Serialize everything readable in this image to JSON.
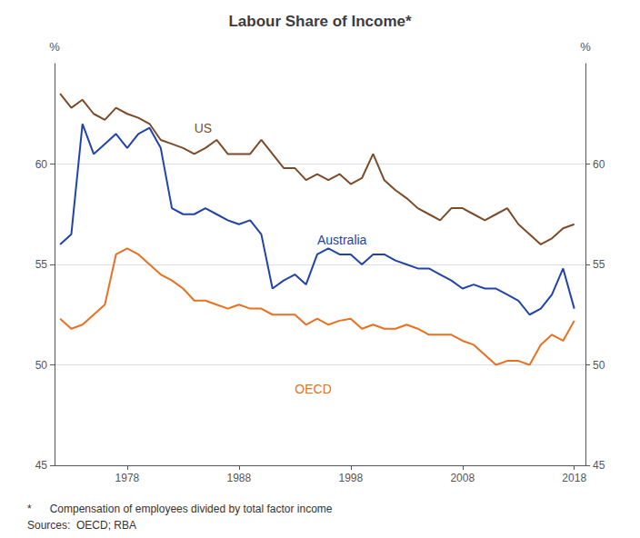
{
  "chart_data": {
    "type": "line",
    "title": "Labour Share of Income*",
    "ylabel": "%",
    "y2label": "%",
    "footnotes": [
      "*      Compensation of employees divided by total factor income",
      "Sources:  OECD; RBA"
    ],
    "xlim": [
      1971.5,
      2019
    ],
    "xticks": [
      1978,
      1988,
      1998,
      2008,
      2018
    ],
    "ylim": [
      45,
      65
    ],
    "yticks": [
      45,
      50,
      55,
      60
    ],
    "y2lim": [
      45,
      65
    ],
    "y2ticks": [
      45,
      50,
      55,
      60
    ],
    "grid": true,
    "x": [
      1972,
      1973,
      1974,
      1975,
      1976,
      1977,
      1978,
      1979,
      1980,
      1981,
      1982,
      1983,
      1984,
      1985,
      1986,
      1987,
      1988,
      1989,
      1990,
      1991,
      1992,
      1993,
      1994,
      1995,
      1996,
      1997,
      1998,
      1999,
      2000,
      2001,
      2002,
      2003,
      2004,
      2005,
      2006,
      2007,
      2008,
      2009,
      2010,
      2011,
      2012,
      2013,
      2014,
      2015,
      2016,
      2017,
      2018
    ],
    "series": [
      {
        "name": "US",
        "color": "#7B4B2A",
        "values": [
          63.5,
          62.8,
          63.2,
          62.5,
          62.2,
          62.8,
          62.5,
          62.3,
          62.0,
          61.2,
          61.0,
          60.8,
          60.5,
          60.8,
          61.2,
          60.5,
          60.5,
          60.5,
          61.2,
          60.5,
          59.8,
          59.8,
          59.2,
          59.5,
          59.2,
          59.5,
          59.0,
          59.3,
          60.5,
          59.2,
          58.7,
          58.3,
          57.8,
          57.5,
          57.2,
          57.8,
          57.8,
          57.5,
          57.2,
          57.5,
          57.8,
          57.0,
          56.5,
          56.0,
          56.3,
          56.8,
          57.0
        ]
      },
      {
        "name": "Australia",
        "color": "#2244AA",
        "values": [
          56.0,
          56.5,
          62.0,
          60.5,
          61.0,
          61.5,
          60.8,
          61.5,
          61.8,
          60.8,
          57.8,
          57.5,
          57.5,
          57.8,
          57.5,
          57.2,
          57.0,
          57.2,
          56.5,
          53.8,
          54.2,
          54.5,
          54.0,
          55.5,
          55.8,
          55.5,
          55.5,
          55.0,
          55.5,
          55.5,
          55.2,
          55.0,
          54.8,
          54.8,
          54.5,
          54.2,
          53.8,
          54.0,
          53.8,
          53.8,
          53.5,
          53.2,
          52.5,
          52.8,
          53.5,
          54.8,
          52.8
        ]
      },
      {
        "name": "OECD",
        "color": "#E87020",
        "values": [
          52.3,
          51.8,
          52.0,
          52.5,
          53.0,
          55.5,
          55.8,
          55.5,
          55.0,
          54.5,
          54.2,
          53.8,
          53.2,
          53.2,
          53.0,
          52.8,
          53.0,
          52.8,
          52.8,
          52.5,
          52.5,
          52.5,
          52.0,
          52.3,
          52.0,
          52.2,
          52.3,
          51.8,
          52.0,
          51.8,
          51.8,
          52.0,
          51.8,
          51.5,
          51.5,
          51.5,
          51.2,
          51.0,
          50.5,
          50.0,
          50.2,
          50.2,
          50.0,
          51.0,
          51.5,
          51.2,
          52.2
        ]
      }
    ],
    "annotations": [
      {
        "text": "US",
        "x": 1984,
        "y": 61.8,
        "color": "#7B4B2A"
      },
      {
        "text": "Australia",
        "x": 1995,
        "y": 56.2,
        "color": "#2244AA"
      },
      {
        "text": "OECD",
        "x": 1993,
        "y": 48.8,
        "color": "#E87020"
      }
    ]
  }
}
